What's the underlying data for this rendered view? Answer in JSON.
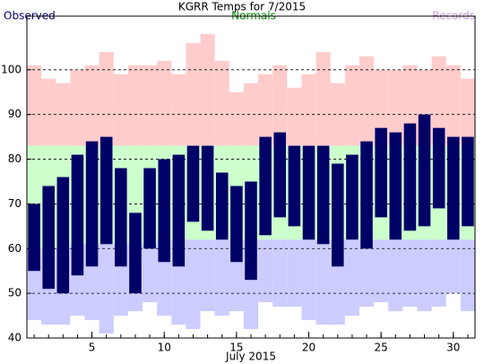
{
  "chart_data": {
    "type": "range-bar",
    "title": "KGRR Temps for 7/2015",
    "xlabel": "July 2015",
    "x": [
      1,
      2,
      3,
      4,
      5,
      6,
      7,
      8,
      9,
      10,
      11,
      12,
      13,
      14,
      15,
      16,
      17,
      18,
      19,
      20,
      21,
      22,
      23,
      24,
      25,
      26,
      27,
      28,
      29,
      30,
      31
    ],
    "xlim": [
      0.5,
      31.5
    ],
    "xticks": [
      5,
      10,
      15,
      20,
      25,
      30
    ],
    "ylim": [
      40,
      112
    ],
    "yticks": [
      40,
      50,
      60,
      70,
      80,
      90,
      100
    ],
    "grid": true,
    "series": [
      {
        "name": "Observed",
        "color": "#000066",
        "high": [
          70,
          74,
          76,
          81,
          84,
          85,
          78,
          68,
          78,
          80,
          81,
          83,
          83,
          77,
          74,
          75,
          85,
          86,
          83,
          83,
          83,
          79,
          81,
          84,
          87,
          86,
          88,
          90,
          87,
          85,
          85
        ],
        "low": [
          55,
          51,
          50,
          54,
          56,
          61,
          56,
          50,
          60,
          57,
          56,
          66,
          64,
          62,
          57,
          53,
          63,
          67,
          65,
          62,
          61,
          56,
          62,
          60,
          67,
          62,
          64,
          65,
          69,
          62,
          65
        ]
      },
      {
        "name": "Normals",
        "color": "#008800",
        "fill": "#ccffcc",
        "high": [
          83,
          83,
          83,
          83,
          83,
          83,
          83,
          83,
          83,
          83,
          83,
          83,
          83,
          83,
          83,
          83,
          83,
          83,
          83,
          83,
          83,
          83,
          83,
          83,
          83,
          83,
          83,
          83,
          83,
          83,
          83
        ],
        "low": [
          60,
          60,
          60,
          61,
          61,
          61,
          61,
          61,
          61,
          62,
          62,
          62,
          62,
          62,
          62,
          62,
          62,
          62,
          62,
          62,
          62,
          62,
          62,
          62,
          62,
          62,
          62,
          62,
          62,
          62,
          62
        ]
      },
      {
        "name": "Records",
        "color": "#cc99dd",
        "high_fill": "#ffcccc",
        "low_fill": "#ccccff",
        "high": [
          101,
          98,
          97,
          100,
          101,
          104,
          99,
          101,
          101,
          102,
          99,
          106,
          108,
          102,
          95,
          97,
          99,
          101,
          96,
          99,
          104,
          97,
          101,
          103,
          100,
          100,
          101,
          100,
          103,
          101,
          98
        ],
        "low": [
          44,
          43,
          43,
          45,
          44,
          41,
          45,
          46,
          48,
          45,
          43,
          42,
          46,
          45,
          46,
          42,
          48,
          47,
          47,
          44,
          43,
          43,
          45,
          47,
          48,
          46,
          47,
          46,
          47,
          50,
          46
        ]
      }
    ]
  }
}
